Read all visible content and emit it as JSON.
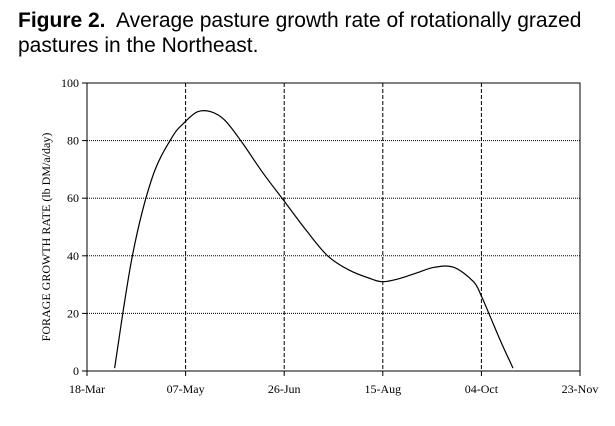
{
  "caption": {
    "figure_label": "Figure 2.",
    "text": "Average pasture growth rate of rotationally grazed pastures in the Northeast."
  },
  "chart_data": {
    "type": "line",
    "title": "",
    "xlabel": "",
    "ylabel": "FORAGE GROWTH RATE (lb DM/a/day)",
    "x_ticks": [
      "18-Mar",
      "07-May",
      "26-Jun",
      "15-Aug",
      "04-Oct",
      "23-Nov"
    ],
    "y_ticks": [
      0,
      20,
      40,
      60,
      80,
      100
    ],
    "ylim": [
      0,
      100
    ],
    "grid": true,
    "series": [
      {
        "x": [
          "2025-04-01",
          "2025-04-10",
          "2025-04-20",
          "2025-04-30",
          "2025-05-06",
          "2025-05-13",
          "2025-05-20",
          "2025-05-27",
          "2025-06-05",
          "2025-06-15",
          "2025-06-26",
          "2025-07-07",
          "2025-07-18",
          "2025-07-29",
          "2025-08-09",
          "2025-08-15",
          "2025-08-23",
          "2025-09-01",
          "2025-09-10",
          "2025-09-20",
          "2025-09-30",
          "2025-10-04",
          "2025-10-09",
          "2025-10-14",
          "2025-10-20"
        ],
        "y": [
          1,
          40,
          67,
          81,
          86,
          90,
          90,
          87,
          79,
          69,
          59,
          49,
          40,
          35,
          32,
          31,
          32,
          34,
          36,
          36,
          31,
          26,
          18,
          10,
          1
        ]
      }
    ]
  }
}
